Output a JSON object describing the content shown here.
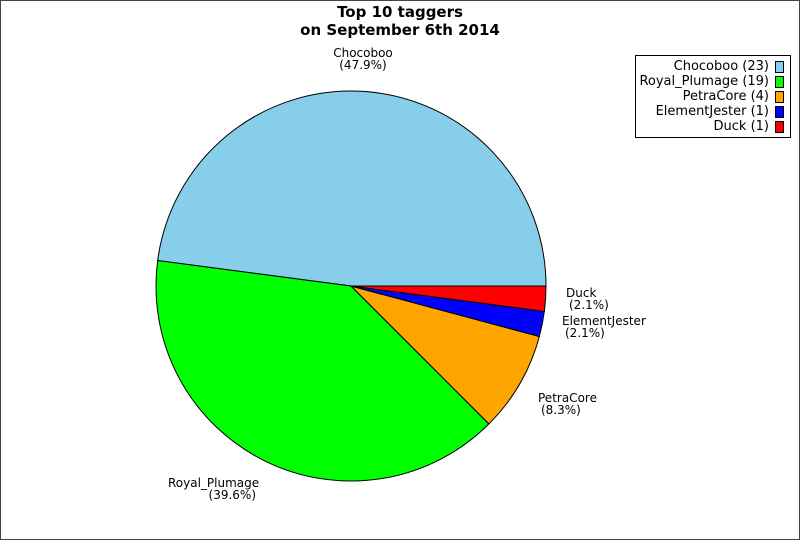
{
  "chart_data": {
    "type": "pie",
    "title": "Top 10 taggers",
    "subtitle": "on September 6th 2014",
    "slices": [
      {
        "name": "Chocoboo",
        "value": 23,
        "percent": "(47.9%)",
        "legend": "Chocoboo (23)",
        "color": "#87ceeb"
      },
      {
        "name": "Royal_Plumage",
        "value": 19,
        "percent": "(39.6%)",
        "legend": "Royal_Plumage (19)",
        "color": "#00ff00"
      },
      {
        "name": "PetraCore",
        "value": 4,
        "percent": "(8.3%)",
        "legend": "PetraCore (4)",
        "color": "#ffa500"
      },
      {
        "name": "ElementJester",
        "value": 1,
        "percent": "(2.1%)",
        "legend": "ElementJester (1)",
        "color": "#0000ff"
      },
      {
        "name": "Duck",
        "value": 1,
        "percent": "(2.1%)",
        "legend": "Duck (1)",
        "color": "#ff0000"
      }
    ],
    "legend_position": "top-right"
  }
}
